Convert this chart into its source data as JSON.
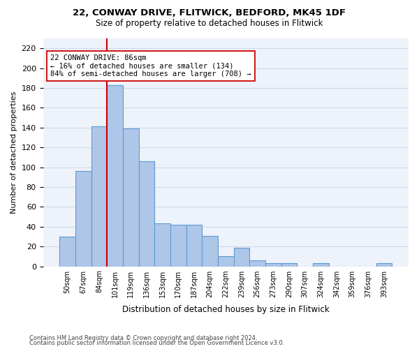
{
  "title1": "22, CONWAY DRIVE, FLITWICK, BEDFORD, MK45 1DF",
  "title2": "Size of property relative to detached houses in Flitwick",
  "xlabel": "Distribution of detached houses by size in Flitwick",
  "ylabel": "Number of detached properties",
  "bar_values": [
    30,
    96,
    141,
    183,
    139,
    106,
    43,
    42,
    42,
    31,
    10,
    19,
    6,
    3,
    3,
    0,
    3,
    0,
    0,
    0,
    3
  ],
  "bin_labels": [
    "50sqm",
    "67sqm",
    "84sqm",
    "101sqm",
    "119sqm",
    "136sqm",
    "153sqm",
    "170sqm",
    "187sqm",
    "204sqm",
    "222sqm",
    "239sqm",
    "256sqm",
    "273sqm",
    "290sqm",
    "307sqm",
    "324sqm",
    "342sqm",
    "359sqm",
    "376sqm",
    "393sqm"
  ],
  "bar_color": "#aec6e8",
  "bar_edge_color": "#5b9bd5",
  "grid_color": "#d0d8e8",
  "background_color": "#eef2fa",
  "property_label": "22 CONWAY DRIVE: 86sqm",
  "annotation_line1": "← 16% of detached houses are smaller (134)",
  "annotation_line2": "84% of semi-detached houses are larger (708) →",
  "vline_color": "#cc0000",
  "annotation_box_color": "#ffffff",
  "annotation_box_edge": "#cc0000",
  "ylim": [
    0,
    230
  ],
  "yticks": [
    0,
    20,
    40,
    60,
    80,
    100,
    120,
    140,
    160,
    180,
    200,
    220
  ],
  "footnote1": "Contains HM Land Registry data © Crown copyright and database right 2024.",
  "footnote2": "Contains public sector information licensed under the Open Government Licence v3.0."
}
